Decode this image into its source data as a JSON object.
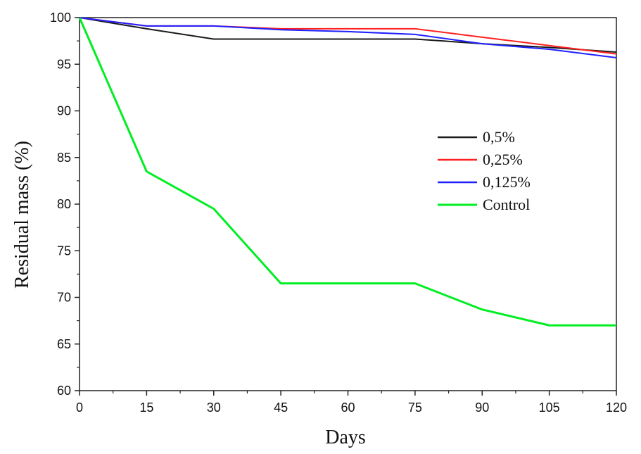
{
  "chart_data": {
    "type": "line",
    "title": "",
    "xlabel": "Days",
    "ylabel": "Residual mass (%)",
    "x": [
      0,
      15,
      30,
      45,
      60,
      75,
      90,
      105,
      120
    ],
    "xlim": [
      0,
      120
    ],
    "ylim": [
      60,
      100
    ],
    "x_ticks": [
      0,
      15,
      30,
      45,
      60,
      75,
      90,
      105,
      120
    ],
    "y_ticks": [
      60,
      65,
      70,
      75,
      80,
      85,
      90,
      95,
      100
    ],
    "grid": false,
    "legend_position": "center-right",
    "series": [
      {
        "name": "0,5%",
        "color": "#1a1a1a",
        "values": [
          100,
          98.8,
          97.7,
          97.7,
          97.7,
          97.7,
          97.2,
          96.8,
          96.3
        ]
      },
      {
        "name": "0,25%",
        "color": "#ff2020",
        "values": [
          100,
          99.1,
          99.1,
          98.8,
          98.8,
          98.8,
          97.9,
          97.0,
          96.1
        ]
      },
      {
        "name": "0,125%",
        "color": "#2020ff",
        "values": [
          100,
          99.1,
          99.1,
          98.7,
          98.5,
          98.2,
          97.2,
          96.6,
          95.7
        ]
      },
      {
        "name": "Control",
        "color": "#00ee22",
        "values": [
          100,
          83.5,
          79.5,
          71.5,
          71.5,
          71.5,
          68.7,
          67.0,
          67.0
        ]
      }
    ]
  }
}
